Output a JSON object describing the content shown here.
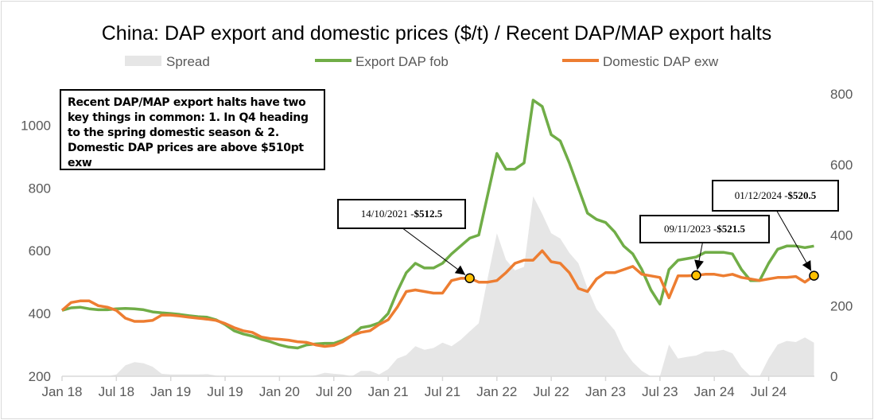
{
  "chart_data": {
    "type": "line",
    "title": "China: DAP export and domestic prices ($/t) / Recent DAP/MAP export halts",
    "x_start": "2018-01",
    "x_frequency": "monthly",
    "x_ticks": [
      "Jan 18",
      "Jul 18",
      "Jan 19",
      "Jul 19",
      "Jan 20",
      "Jul 20",
      "Jan 21",
      "Jul 21",
      "Jan 22",
      "Jul 22",
      "Jan 23",
      "Jul 23",
      "Jan 24",
      "Jul 24"
    ],
    "y_left": {
      "range": [
        200,
        1100
      ],
      "ticks": [
        "200",
        "400",
        "600",
        "800",
        "1000"
      ]
    },
    "y_right": {
      "range": [
        0,
        800
      ],
      "ticks": [
        "0",
        "200",
        "400",
        "600",
        "800"
      ]
    },
    "grid": false,
    "legend_position": "top",
    "series": [
      {
        "name": "Spread",
        "type": "area",
        "axis": "right",
        "color": "#e6e6e6",
        "values": [
          0,
          0,
          0,
          0,
          0,
          0,
          5,
          31,
          40,
          37,
          27,
          7,
          5,
          5,
          5,
          5,
          6,
          2,
          0,
          0,
          0,
          0,
          0,
          0,
          0,
          0,
          0,
          0,
          3,
          10,
          7,
          5,
          0,
          15,
          15,
          5,
          20,
          50,
          60,
          85,
          75,
          80,
          95,
          85,
          103,
          127,
          150,
          280,
          405,
          330,
          300,
          310,
          510,
          460,
          405,
          390,
          350,
          320,
          250,
          190,
          160,
          130,
          75,
          40,
          15,
          0,
          0,
          90,
          50,
          55,
          58.5,
          70,
          70,
          75,
          65,
          25,
          0,
          0,
          50,
          90,
          100,
          97,
          110,
          95
        ]
      },
      {
        "name": "Export DAP fob",
        "type": "line",
        "axis": "left",
        "color": "#70ad47",
        "values": [
          410,
          418,
          420,
          415,
          412,
          412,
          415,
          416,
          415,
          412,
          405,
          402,
          400,
          397,
          393,
          390,
          388,
          380,
          365,
          345,
          335,
          328,
          318,
          310,
          300,
          293,
          290,
          300,
          303,
          305,
          305,
          315,
          330,
          355,
          360,
          370,
          400,
          470,
          530,
          560,
          545,
          545,
          560,
          590,
          615,
          640,
          650,
          780,
          910,
          860,
          860,
          880,
          1080,
          1060,
          970,
          950,
          880,
          800,
          720,
          700,
          690,
          660,
          615,
          590,
          540,
          475,
          430,
          540,
          570,
          575,
          580,
          595,
          595,
          595,
          590,
          540,
          505,
          505,
          560,
          605,
          615,
          615,
          610,
          615
        ]
      },
      {
        "name": "Domestic DAP exw",
        "type": "line",
        "axis": "left",
        "color": "#ed7d31",
        "values": [
          410,
          435,
          440,
          440,
          425,
          420,
          410,
          385,
          375,
          375,
          378,
          395,
          395,
          392,
          388,
          385,
          382,
          378,
          368,
          355,
          345,
          340,
          325,
          320,
          318,
          315,
          310,
          308,
          300,
          295,
          298,
          310,
          330,
          340,
          345,
          365,
          380,
          420,
          470,
          475,
          470,
          465,
          465,
          505,
          512,
          512.5,
          500,
          500,
          505,
          530,
          560,
          570,
          570,
          600,
          565,
          560,
          530,
          480,
          470,
          510,
          530,
          530,
          540,
          550,
          525,
          520,
          515,
          450,
          520,
          520,
          521.5,
          525,
          525,
          520,
          525,
          515,
          510,
          505,
          510,
          515,
          515,
          518,
          500,
          520.5
        ]
      }
    ],
    "markers": [
      {
        "date": "2021-10",
        "value": 512.5,
        "label_date": "14/10/2021 - ",
        "label_value": "$512.5"
      },
      {
        "date": "2023-11",
        "value": 521.5,
        "label_date": "09/11/2023 - ",
        "label_value": "$521.5"
      },
      {
        "date": "2024-12",
        "value": 520.5,
        "label_date": "01/12/2024 - ",
        "label_value": "$520.5"
      }
    ],
    "marker_color": "#ffc000",
    "annotation": "Recent DAP/MAP export halts have two key things in common: 1. In Q4 heading to the spring domestic season & 2. Domestic DAP prices are above $510pt exw"
  }
}
